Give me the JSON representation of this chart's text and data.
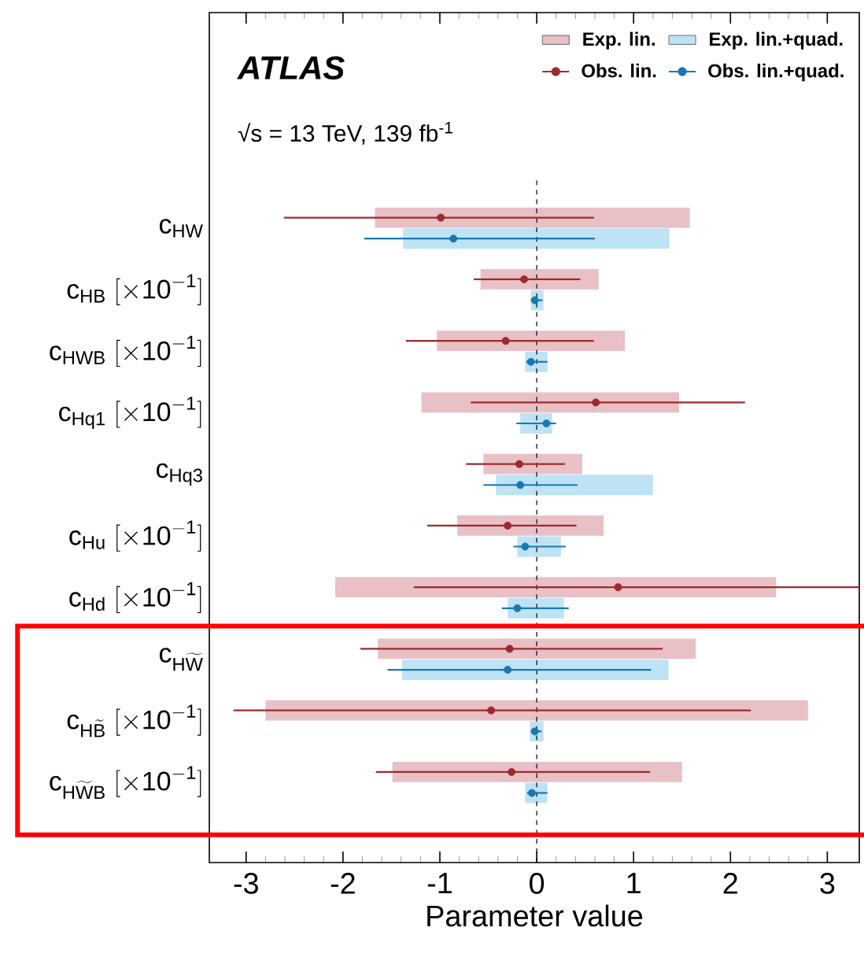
{
  "chart_data": {
    "type": "bar",
    "orientation": "horizontal",
    "xlabel": "Parameter value",
    "xlim": [
      -3.38,
      3.33
    ],
    "xticks": [
      -3,
      -2,
      -1,
      0,
      1,
      2,
      3
    ],
    "legend": "top right",
    "categories": [
      "\\mathrm{c}_{\\mathrm{HW}}",
      "\\mathrm{c}_{\\mathrm{HB}}\\ \\mathrm{[}{\\times}\\mathrm{10}^{\\mathrm{-1}}\\mathrm{]}",
      "\\mathrm{c}_{\\mathrm{HWB}}\\ \\mathrm{[}{\\times}\\mathrm{10}^{\\mathrm{-1}}\\mathrm{]}",
      "\\mathrm{c}_{\\mathrm{Hq1}}\\ \\mathrm{[}{\\times}\\mathrm{10}^{\\mathrm{-1}}\\mathrm{]}",
      "\\mathrm{c}_{\\mathrm{Hq3}}",
      "\\mathrm{c}_{\\mathrm{Hu}}\\ \\mathrm{[}{\\times}\\mathrm{10}^{\\mathrm{-1}}\\mathrm{]}",
      "\\mathrm{c}_{\\mathrm{Hd}}\\ \\mathrm{[}{\\times}\\mathrm{10}^{\\mathrm{-1}}\\mathrm{]}",
      "\\mathrm{c}_{\\mathrm{H\\widetilde{W}}}",
      "\\mathrm{c}_{\\mathrm{H\\widetilde{B}}}\\ \\mathrm{[}{\\times}\\mathrm{10}^{\\mathrm{-1}}\\mathrm{]}",
      "\\mathrm{c}_{\\mathrm{H\\widetilde{W}B}}\\ \\mathrm{[}{\\times}\\mathrm{10}^{\\mathrm{-1}}\\mathrm{]}"
    ],
    "series": [
      {
        "name": "Exp. lin.",
        "color": "#e8c0c5",
        "base": [
          -1.67,
          -0.58,
          -1.03,
          -1.19,
          -0.55,
          -0.82,
          -2.08,
          -1.64,
          -2.8,
          -1.49
        ],
        "values": [
          3.25,
          1.22,
          1.94,
          2.66,
          1.02,
          1.51,
          4.55,
          3.28,
          5.6,
          2.99
        ]
      },
      {
        "name": "Exp. lin.+quad.",
        "color": "#bde3f4",
        "base": [
          -1.38,
          -0.06,
          -0.12,
          -0.17,
          -0.42,
          -0.2,
          -0.3,
          -1.39,
          -0.07,
          -0.12
        ],
        "values": [
          2.75,
          0.13,
          0.23,
          0.33,
          1.62,
          0.45,
          0.58,
          2.75,
          0.14,
          0.23
        ]
      },
      {
        "name": "Obs. lin.",
        "type": "scatter",
        "marker": "circle",
        "color": "#9e2a2f",
        "values": [
          -0.99,
          -0.13,
          -0.32,
          0.61,
          -0.18,
          -0.3,
          0.84,
          -0.28,
          -0.47,
          -0.26
        ],
        "errors": [
          [
            -2.61,
            0.59
          ],
          [
            -0.65,
            0.45
          ],
          [
            -1.35,
            0.59
          ],
          [
            -0.68,
            2.15
          ],
          [
            -0.73,
            0.29
          ],
          [
            -1.13,
            0.41
          ],
          [
            -1.27,
            3.33
          ],
          [
            -1.82,
            1.3
          ],
          [
            -3.13,
            2.21
          ],
          [
            -1.66,
            1.17
          ]
        ]
      },
      {
        "name": "Obs. lin.+quad.",
        "type": "scatter",
        "marker": "circle",
        "color": "#1a78b0",
        "values": [
          -0.86,
          -0.02,
          -0.06,
          0.1,
          -0.17,
          -0.12,
          -0.2,
          -0.3,
          -0.02,
          -0.05
        ],
        "errors": [
          [
            -1.78,
            0.6
          ],
          [
            -0.06,
            0.06
          ],
          [
            -0.11,
            0.11
          ],
          [
            -0.21,
            0.2
          ],
          [
            -0.55,
            0.42
          ],
          [
            -0.24,
            0.3
          ],
          [
            -0.36,
            0.33
          ],
          [
            -1.54,
            1.18
          ],
          [
            -0.06,
            0.05
          ],
          [
            -0.1,
            0.11
          ]
        ]
      }
    ],
    "ref_lines": [
      {
        "axis": "x",
        "value": 0,
        "line_style": "dashed",
        "color": "#000000"
      }
    ],
    "annotations": [
      "ATLAS",
      "√s = 13 TeV, 139 fb$^{-1}$"
    ]
  }
}
